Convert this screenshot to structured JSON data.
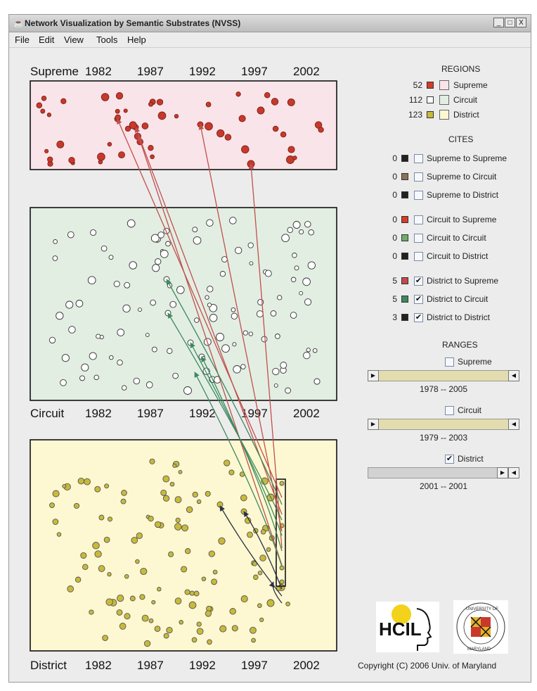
{
  "window": {
    "title": "Network Visualization by Semantic Substrates (NVSS)",
    "buttons": {
      "minimize": "_",
      "maximize": "□",
      "close": "X"
    }
  },
  "menu": [
    "File",
    "Edit",
    "View",
    "Tools",
    "Help"
  ],
  "regions_panel": {
    "title": "REGIONS",
    "items": [
      {
        "count": "52",
        "label": "Supreme",
        "swatch": "#d83a2a",
        "fill": "#f9e4e9"
      },
      {
        "count": "112",
        "label": "Circuit",
        "swatch": "#ffffff",
        "fill": "#e3eee3"
      },
      {
        "count": "123",
        "label": "District",
        "swatch": "#c9b93a",
        "fill": "#fdf8d2"
      }
    ]
  },
  "cites_panel": {
    "title": "CITES",
    "items": [
      {
        "count": "0",
        "label": "Supreme to Supreme",
        "color": "#222222",
        "checked": false
      },
      {
        "count": "0",
        "label": "Supreme to Circuit",
        "color": "#8a7356",
        "checked": false
      },
      {
        "count": "0",
        "label": "Supreme to District",
        "color": "#222222",
        "checked": false
      },
      {
        "count": "0",
        "label": "Circuit to Supreme",
        "color": "#d83a2a",
        "checked": false
      },
      {
        "count": "0",
        "label": "Circuit to Circuit",
        "color": "#6fae6a",
        "checked": false
      },
      {
        "count": "0",
        "label": "Circuit to District",
        "color": "#222222",
        "checked": false
      },
      {
        "count": "5",
        "label": "District to Supreme",
        "color": "#c24b4b",
        "checked": true
      },
      {
        "count": "5",
        "label": "District to Circuit",
        "color": "#3b8a5e",
        "checked": true
      },
      {
        "count": "3",
        "label": "District to District",
        "color": "#222222",
        "checked": true
      }
    ]
  },
  "ranges_panel": {
    "title": "RANGES",
    "items": [
      {
        "label": "Supreme",
        "checked": false,
        "range": "1978  --  2005"
      },
      {
        "label": "Circuit",
        "checked": false,
        "range": "1979  --  2003"
      },
      {
        "label": "District",
        "checked": true,
        "range": "2001  --  2001"
      }
    ]
  },
  "plots": {
    "supreme": {
      "name": "Supreme",
      "fill": "#f9e4e9",
      "node_color": "#c8392b"
    },
    "circuit": {
      "name": "Circuit",
      "fill": "#e3eee3",
      "node_color": "#ffffff"
    },
    "district": {
      "name": "District",
      "fill": "#fdf8d2",
      "node_color": "#c9b93a"
    },
    "year_labels": [
      "1982",
      "1987",
      "1992",
      "1997",
      "2002"
    ],
    "edge_colors": {
      "to_supreme": "#c0504d",
      "to_circuit": "#3b8a5e",
      "to_district": "#2a3040"
    }
  },
  "logos": {
    "hcil": "HCIL",
    "umd_top": "UNIVERSITY OF",
    "umd_bottom": "MARYLAND"
  },
  "copyright": "Copyright (C) 2006   Univ. of Maryland"
}
